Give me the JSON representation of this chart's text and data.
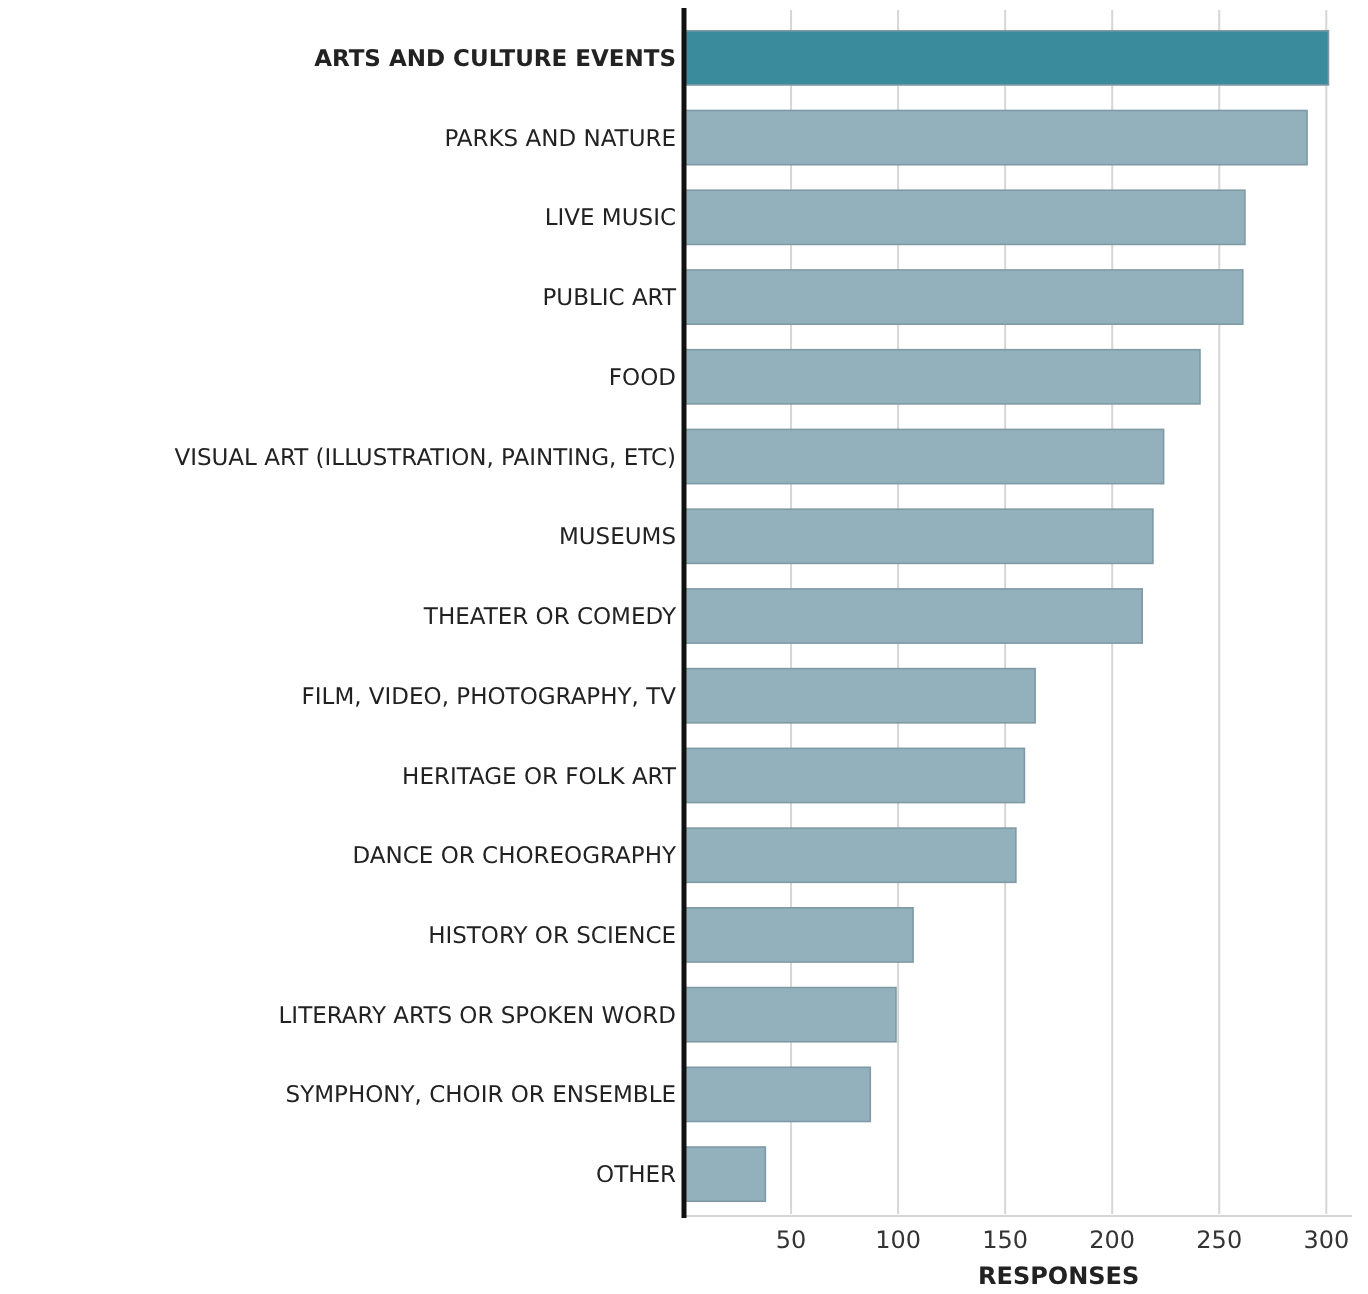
{
  "chart_data": {
    "type": "bar",
    "orientation": "horizontal",
    "xlabel": "RESPONSES",
    "categories": [
      "ARTS AND CULTURE EVENTS",
      "PARKS AND NATURE",
      "LIVE MUSIC",
      "PUBLIC ART",
      "FOOD",
      "VISUAL ART (ILLUSTRATION, PAINTING, ETC)",
      "MUSEUMS",
      "THEATER OR COMEDY",
      "FILM, VIDEO, PHOTOGRAPHY, TV",
      "HERITAGE OR FOLK ART",
      "DANCE OR CHOREOGRAPHY",
      "HISTORY OR SCIENCE",
      "LITERARY ARTS OR SPOKEN WORD",
      "SYMPHONY, CHOIR OR ENSEMBLE",
      "OTHER"
    ],
    "values": [
      301,
      291,
      262,
      261,
      241,
      224,
      219,
      214,
      164,
      159,
      155,
      107,
      99,
      87,
      38
    ],
    "colors": [
      "#3a8b9b",
      "#93b1bd",
      "#93b1bd",
      "#93b1bd",
      "#93b1bd",
      "#93b1bd",
      "#93b1bd",
      "#93b1bd",
      "#93b1bd",
      "#93b1bd",
      "#93b1bd",
      "#93b1bd",
      "#93b1bd",
      "#93b1bd",
      "#93b1bd"
    ],
    "xlim": [
      0,
      312
    ],
    "xticks": [
      50,
      100,
      150,
      200,
      250,
      300
    ],
    "grid": "x"
  }
}
